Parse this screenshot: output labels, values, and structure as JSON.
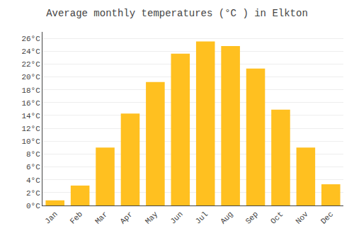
{
  "chart_data": {
    "type": "bar",
    "title": "Average monthly temperatures (°C ) in Elkton",
    "categories": [
      "Jan",
      "Feb",
      "Mar",
      "Apr",
      "May",
      "Jun",
      "Jul",
      "Aug",
      "Sep",
      "Oct",
      "Nov",
      "Dec"
    ],
    "values": [
      0.8,
      3.1,
      9.0,
      14.3,
      19.2,
      23.6,
      25.5,
      24.8,
      21.3,
      14.9,
      9.0,
      3.3
    ],
    "color": "#FFC020",
    "ylim": [
      0,
      27
    ],
    "yticks": [
      {
        "value": 0,
        "label": "0°C"
      },
      {
        "value": 2,
        "label": "2°C"
      },
      {
        "value": 4,
        "label": "4°C"
      },
      {
        "value": 6,
        "label": "6°C"
      },
      {
        "value": 8,
        "label": "8°C"
      },
      {
        "value": 10,
        "label": "10°C"
      },
      {
        "value": 12,
        "label": "12°C"
      },
      {
        "value": 14,
        "label": "14°C"
      },
      {
        "value": 16,
        "label": "16°C"
      },
      {
        "value": 18,
        "label": "18°C"
      },
      {
        "value": 20,
        "label": "20°C"
      },
      {
        "value": 22,
        "label": "22°C"
      },
      {
        "value": 24,
        "label": "24°C"
      },
      {
        "value": 26,
        "label": "26°C"
      }
    ],
    "grid": true
  }
}
